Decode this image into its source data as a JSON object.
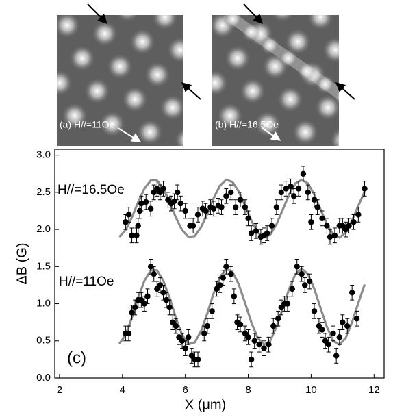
{
  "panels": [
    {
      "label": "(a) H//=11Oe"
    },
    {
      "label": "(b) H//=16.5Oe"
    }
  ],
  "chart_data": {
    "type": "scatter",
    "xlabel": "X (μm)",
    "ylabel": "ΔB (G)",
    "annotation": "(c)",
    "xlim": [
      1.85,
      12.32
    ],
    "ylim": [
      0,
      3.08
    ],
    "xticks": [
      2,
      4,
      6,
      8,
      10,
      12
    ],
    "yticks": [
      {
        "value": 0,
        "label": "0.0"
      },
      {
        "value": 0.5,
        "label": "0.5"
      },
      {
        "value": 1,
        "label": "1.0"
      },
      {
        "value": 1.5,
        "label": "1.5"
      },
      {
        "value": 2,
        "label": "2.0"
      },
      {
        "value": 2.5,
        "label": "2.5"
      },
      {
        "value": 3,
        "label": "3.0"
      }
    ],
    "series": [
      {
        "name": "H//=16.5Oe",
        "color": "#000000",
        "error": 0.1,
        "x": [
          4.1,
          4.2,
          4.3,
          4.45,
          4.5,
          4.55,
          4.6,
          4.75,
          4.9,
          5.0,
          5.1,
          5.2,
          5.3,
          5.45,
          5.55,
          5.65,
          5.75,
          5.85,
          6.0,
          6.15,
          6.25,
          6.4,
          6.55,
          6.65,
          6.8,
          6.9,
          7.05,
          7.15,
          7.3,
          7.45,
          7.6,
          7.75,
          7.9,
          8.0,
          8.1,
          8.25,
          8.4,
          8.5,
          8.6,
          8.75,
          8.9,
          9.05,
          9.2,
          9.35,
          9.45,
          9.6,
          9.75,
          9.9,
          10.0,
          10.1,
          10.2,
          10.35,
          10.5,
          10.6,
          10.75,
          10.9,
          11.0,
          11.1,
          11.2,
          11.35,
          11.5,
          11.7
        ],
        "values": [
          2.1,
          2.2,
          1.92,
          1.92,
          2.05,
          2.25,
          2.35,
          2.37,
          2.28,
          2.5,
          2.55,
          2.5,
          2.55,
          2.4,
          2.35,
          2.38,
          2.5,
          2.35,
          2.25,
          2.05,
          2.05,
          2.2,
          2.28,
          2.25,
          2.3,
          2.28,
          2.32,
          2.3,
          2.45,
          2.5,
          2.3,
          2.4,
          2.3,
          2.15,
          1.95,
          1.98,
          1.9,
          1.92,
          1.95,
          2.05,
          2.3,
          2.5,
          2.55,
          2.58,
          2.45,
          2.55,
          2.75,
          2.5,
          2.1,
          2.4,
          2.3,
          2.15,
          2.05,
          1.9,
          1.92,
          2.05,
          2.05,
          2.0,
          2.05,
          2.1,
          2.2,
          2.55
        ],
        "fit": {
          "color": "#8c8c8c",
          "x": [
            3.9,
            4.1,
            4.3,
            4.5,
            4.7,
            4.9,
            5.1,
            5.3,
            5.5,
            5.7,
            5.9,
            6.1,
            6.3,
            6.5,
            6.7,
            6.9,
            7.1,
            7.3,
            7.5,
            7.7,
            7.9,
            8.1,
            8.3,
            8.5,
            8.7,
            8.9,
            9.1,
            9.3,
            9.5,
            9.7,
            9.9,
            10.1,
            10.3,
            10.5,
            10.7,
            10.9,
            11.1,
            11.3,
            11.5,
            11.7
          ],
          "values": [
            1.9,
            1.99,
            2.16,
            2.37,
            2.55,
            2.66,
            2.66,
            2.55,
            2.37,
            2.16,
            1.99,
            1.9,
            1.91,
            2.03,
            2.21,
            2.42,
            2.59,
            2.67,
            2.64,
            2.51,
            2.32,
            2.12,
            1.96,
            1.89,
            1.93,
            2.07,
            2.27,
            2.47,
            2.62,
            2.67,
            2.62,
            2.47,
            2.27,
            2.07,
            1.93,
            1.89,
            1.96,
            2.12,
            2.32,
            2.51
          ]
        }
      },
      {
        "name": "H//=11Oe",
        "color": "#000000",
        "error": 0.1,
        "x": [
          4.1,
          4.2,
          4.3,
          4.4,
          4.5,
          4.6,
          4.7,
          4.8,
          4.9,
          5.0,
          5.1,
          5.2,
          5.3,
          5.4,
          5.5,
          5.6,
          5.7,
          5.8,
          5.9,
          6.0,
          6.1,
          6.2,
          6.3,
          6.4,
          6.6,
          6.7,
          6.85,
          7.0,
          7.1,
          7.2,
          7.3,
          7.45,
          7.55,
          7.65,
          7.75,
          7.9,
          8.0,
          8.1,
          8.2,
          8.35,
          8.5,
          8.65,
          8.8,
          8.95,
          9.05,
          9.15,
          9.25,
          9.4,
          9.55,
          9.7,
          9.8,
          9.95,
          10.1,
          10.25,
          10.35,
          10.45,
          10.55,
          10.7,
          10.8,
          10.9,
          11.0,
          11.15,
          11.3,
          11.45
        ],
        "values": [
          0.6,
          0.6,
          0.88,
          0.95,
          1.05,
          1.05,
          1.0,
          1.1,
          1.5,
          1.4,
          1.2,
          1.25,
          1.15,
          1.05,
          0.95,
          0.75,
          0.7,
          0.55,
          0.5,
          0.4,
          0.55,
          0.3,
          0.25,
          0.25,
          0.6,
          0.7,
          0.9,
          1.2,
          1.25,
          1.35,
          1.5,
          1.4,
          1.1,
          0.75,
          0.72,
          0.6,
          0.55,
          0.25,
          0.5,
          0.45,
          0.4,
          0.45,
          0.7,
          0.8,
          0.95,
          1.0,
          1.0,
          1.2,
          1.5,
          1.4,
          1.25,
          1.3,
          0.9,
          0.7,
          0.65,
          0.5,
          0.45,
          0.6,
          0.3,
          0.55,
          0.75,
          0.7,
          1.15,
          0.8
        ],
        "fit": {
          "color": "#8c8c8c",
          "x": [
            3.9,
            4.1,
            4.3,
            4.5,
            4.7,
            4.9,
            5.1,
            5.3,
            5.5,
            5.7,
            5.9,
            6.1,
            6.3,
            6.5,
            6.7,
            6.9,
            7.1,
            7.3,
            7.5,
            7.7,
            7.9,
            8.1,
            8.3,
            8.5,
            8.7,
            8.9,
            9.1,
            9.3,
            9.5,
            9.7,
            9.9,
            10.1,
            10.3,
            10.5,
            10.7,
            10.9,
            11.1,
            11.3,
            11.5,
            11.7
          ],
          "values": [
            0.46,
            0.58,
            0.81,
            1.08,
            1.31,
            1.45,
            1.45,
            1.31,
            1.08,
            0.81,
            0.58,
            0.46,
            0.48,
            0.63,
            0.87,
            1.14,
            1.36,
            1.47,
            1.43,
            1.26,
            1.01,
            0.75,
            0.54,
            0.45,
            0.5,
            0.69,
            0.94,
            1.2,
            1.4,
            1.47,
            1.4,
            1.2,
            0.94,
            0.69,
            0.5,
            0.45,
            0.54,
            0.75,
            1.01,
            1.26
          ]
        }
      }
    ]
  }
}
